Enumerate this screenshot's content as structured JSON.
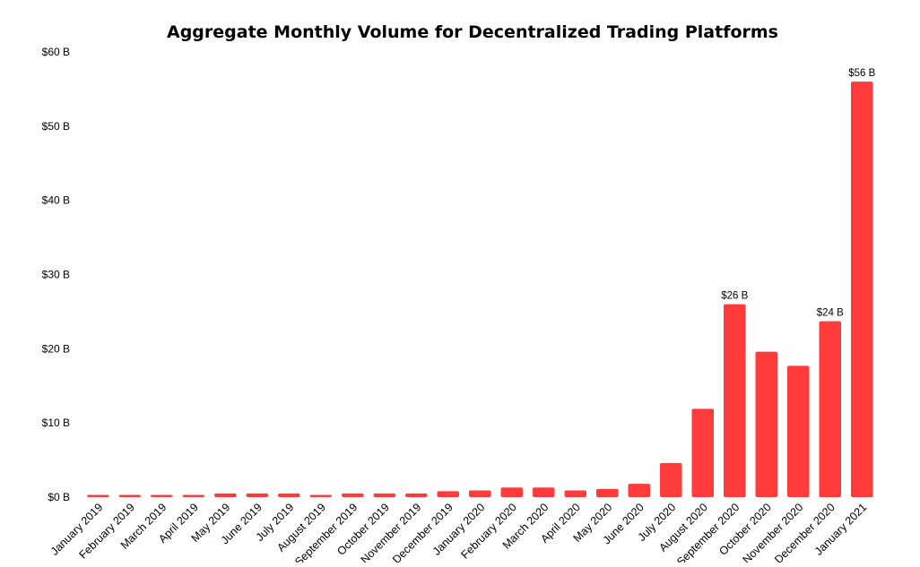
{
  "chart_data": {
    "type": "bar",
    "title": "Aggregate Monthly Volume for Decentralized Trading Platforms",
    "xlabel": "",
    "ylabel": "",
    "ylim": [
      0,
      60
    ],
    "yticks": [
      0,
      10,
      20,
      30,
      40,
      50,
      60
    ],
    "ytick_labels": [
      "$0 B",
      "$10 B",
      "$20 B",
      "$30 B",
      "$40 B",
      "$50 B",
      "$60 B"
    ],
    "grid": false,
    "legend": "none",
    "bar_color": "#ff3b3b",
    "units": "USD billions",
    "categories": [
      "January 2019",
      "February 2019",
      "March 2019",
      "April 2019",
      "May 2019",
      "June 2019",
      "July 2019",
      "August 2019",
      "September 2019",
      "October 2019",
      "November 2019",
      "December 2019",
      "January 2020",
      "February 2020",
      "March 2020",
      "April 2020",
      "May 2020",
      "June 2020",
      "July 2020",
      "August 2020",
      "September 2020",
      "October 2020",
      "November 2020",
      "December 2020",
      "January 2021"
    ],
    "values": [
      0.3,
      0.3,
      0.3,
      0.3,
      0.5,
      0.5,
      0.5,
      0.3,
      0.5,
      0.5,
      0.5,
      0.8,
      0.9,
      1.3,
      1.3,
      0.9,
      1.1,
      1.8,
      4.6,
      11.9,
      26.0,
      19.6,
      17.7,
      23.7,
      56.0
    ],
    "annotations": [
      {
        "category": "September 2020",
        "text": "$26 B"
      },
      {
        "category": "December 2020",
        "text": "$24 B"
      },
      {
        "category": "January 2021",
        "text": "$56 B"
      }
    ]
  }
}
